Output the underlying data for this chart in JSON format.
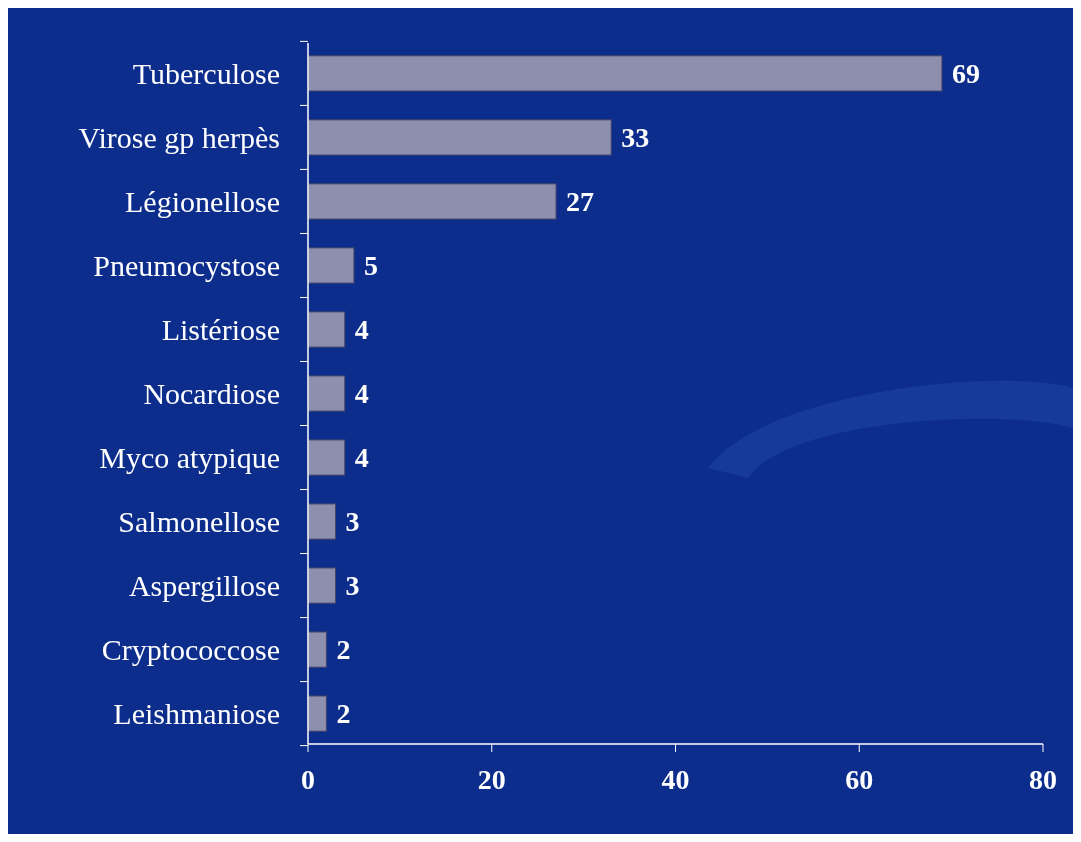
{
  "chart_data": {
    "type": "bar",
    "orientation": "horizontal",
    "categories": [
      "Tuberculose",
      "Virose gp herpès",
      "Légionellose",
      "Pneumocystose",
      "Listériose",
      "Nocardiose",
      "Myco atypique",
      "Salmonellose",
      "Aspergillose",
      "Cryptococcose",
      "Leishmaniose"
    ],
    "values": [
      69,
      33,
      27,
      5,
      4,
      4,
      4,
      3,
      3,
      2,
      2
    ],
    "color": "#8e8eae",
    "xlim": [
      0,
      80
    ],
    "xticks": [
      0,
      20,
      40,
      60,
      80
    ],
    "data_labels": true
  }
}
